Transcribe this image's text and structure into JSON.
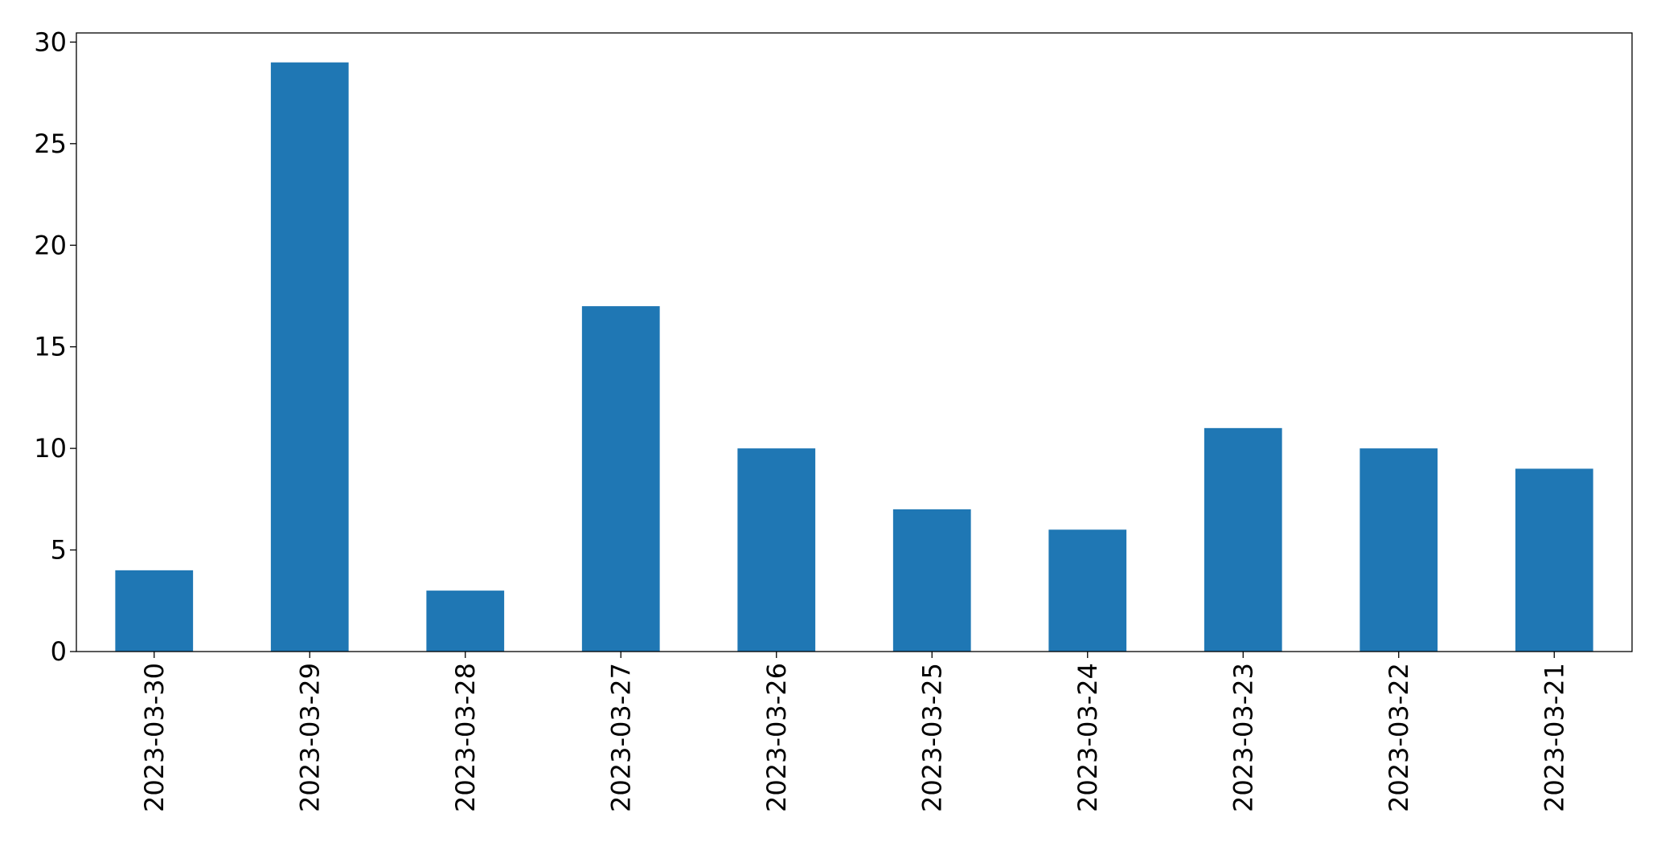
{
  "chart_data": {
    "type": "bar",
    "categories": [
      "2023-03-30",
      "2023-03-29",
      "2023-03-28",
      "2023-03-27",
      "2023-03-26",
      "2023-03-25",
      "2023-03-24",
      "2023-03-23",
      "2023-03-22",
      "2023-03-21"
    ],
    "values": [
      4,
      29,
      3,
      17,
      10,
      7,
      6,
      11,
      10,
      9
    ],
    "color": "#1f77b4",
    "ylim": [
      0,
      30.45
    ],
    "yticks": [
      0,
      5,
      10,
      15,
      20,
      25,
      30
    ],
    "grid": false
  }
}
